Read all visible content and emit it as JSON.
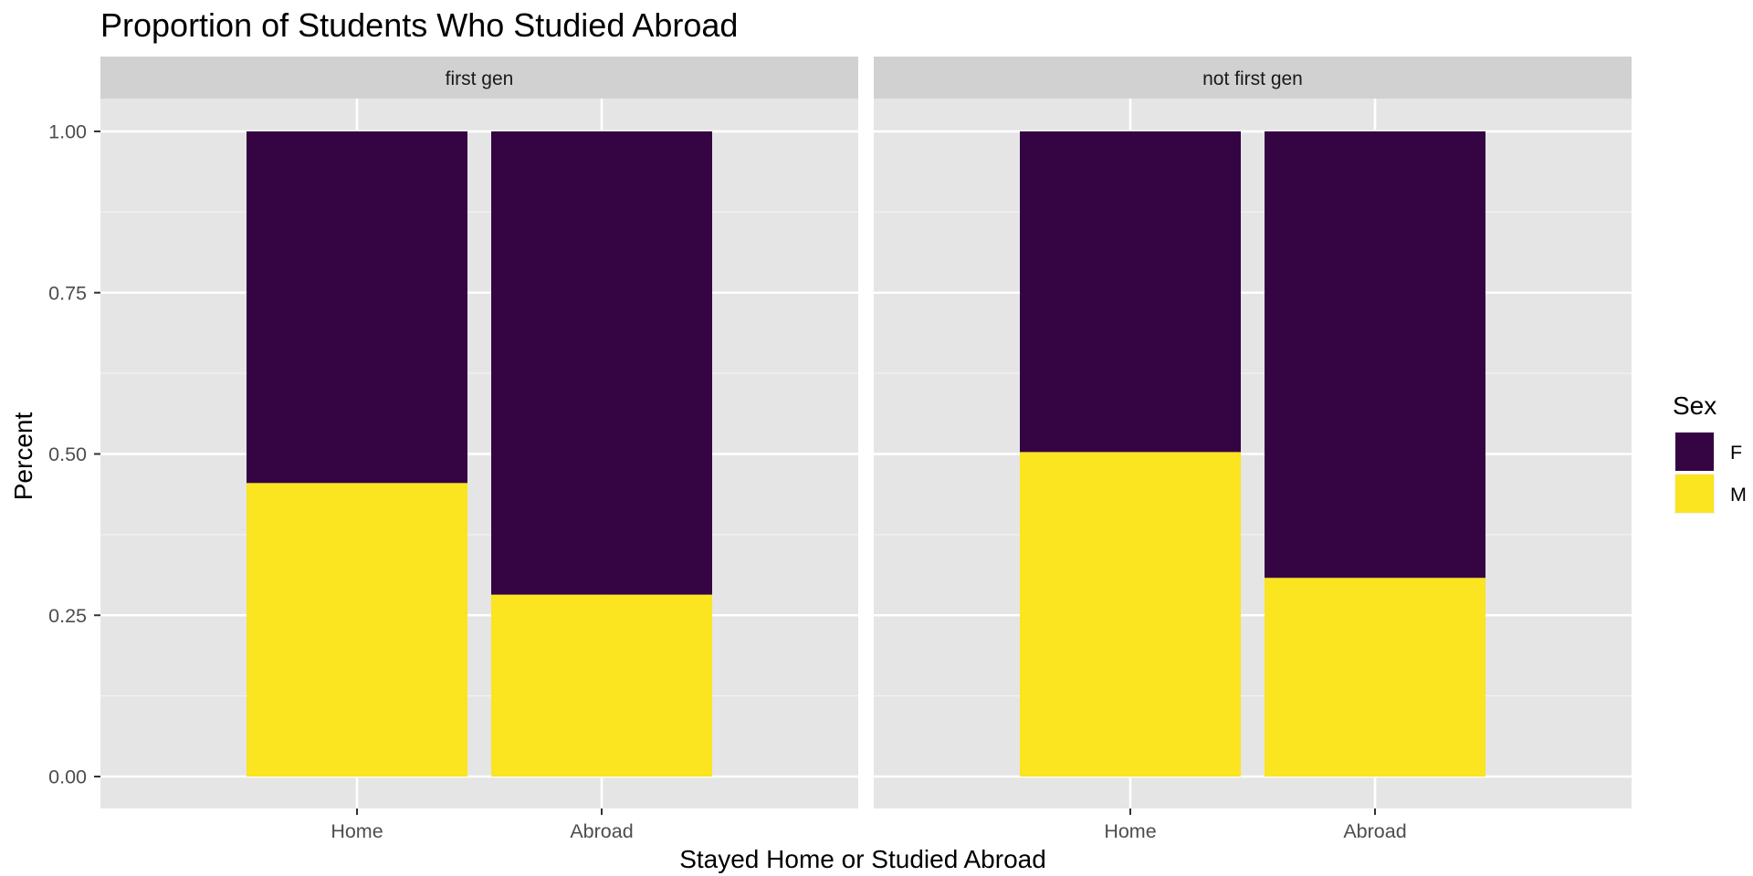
{
  "chart_data": {
    "type": "bar",
    "stacked": true,
    "title": "Proportion of Students Who Studied Abroad",
    "xlabel": "Stayed Home or Studied Abroad",
    "ylabel": "Percent",
    "ylim": [
      -0.05,
      1.05
    ],
    "yticks": [
      0,
      0.25,
      0.5,
      0.75,
      1
    ],
    "ytick_labels": [
      "0.00",
      "0.25",
      "0.50",
      "0.75",
      "1.00"
    ],
    "categories": [
      "Home",
      "Abroad"
    ],
    "facets": [
      {
        "label": "first gen",
        "series": [
          {
            "name": "F",
            "values": [
              0.545,
              0.718
            ]
          },
          {
            "name": "M",
            "values": [
              0.455,
              0.282
            ]
          }
        ]
      },
      {
        "label": "not first gen",
        "series": [
          {
            "name": "F",
            "values": [
              0.497,
              0.692
            ]
          },
          {
            "name": "M",
            "values": [
              0.503,
              0.308
            ]
          }
        ]
      }
    ],
    "stack_order": [
      "M",
      "F"
    ],
    "legend": {
      "title": "Sex",
      "placement": "right",
      "items": [
        "F",
        "M"
      ]
    },
    "colors": {
      "F": "#350442",
      "M": "#FBE420"
    },
    "grid": true,
    "panel_background": "#E5E5E5",
    "strip_background": "#D1D1D1"
  }
}
